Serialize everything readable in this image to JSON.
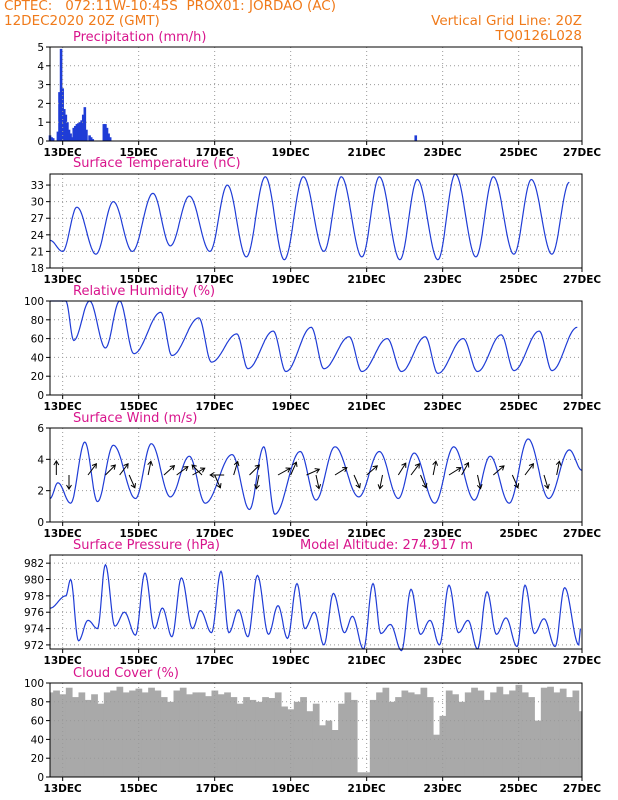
{
  "header": {
    "source": "CPTEC:",
    "location": "072:11W-10:45S",
    "station": "PROX01: JORDAO (AC)",
    "datetime": "12DEC2020 20Z (GMT)",
    "grid_note": "Vertical Grid Line: 20Z",
    "code": "TQ0126L028"
  },
  "colors": {
    "header": "#f07a1a",
    "title": "#d8148c",
    "series": "#1f3cd6",
    "cloud": "#a9a9a9",
    "grid": "#999999"
  },
  "x_axis": {
    "start_hour": 20,
    "end_hour": 356,
    "tick_labels": [
      "13DEC",
      "15DEC",
      "17DEC",
      "19DEC",
      "21DEC",
      "23DEC",
      "25DEC",
      "27DEC"
    ],
    "tick_hours": [
      28,
      76,
      124,
      172,
      220,
      268,
      316,
      364
    ]
  },
  "chart_data": [
    {
      "id": "precip",
      "type": "bar",
      "title": "Precipitation (mm/h)",
      "xlabel": "",
      "ylabel": "",
      "ylim": [
        0,
        5
      ],
      "yticks": [
        0,
        1,
        2,
        3,
        4,
        5
      ],
      "color": "#1f3cd6",
      "x": [
        20,
        21,
        22,
        25,
        26,
        27,
        28,
        29,
        30,
        31,
        32,
        33,
        34,
        35,
        36,
        37,
        38,
        39,
        40,
        41,
        42,
        43,
        45,
        46,
        47,
        54,
        55,
        56,
        57,
        58,
        251
      ],
      "values": [
        0.3,
        0.2,
        0.15,
        0.5,
        2.6,
        4.9,
        2.8,
        1.7,
        1.4,
        1.0,
        0.6,
        0.4,
        0.2,
        0.7,
        0.8,
        0.9,
        0.95,
        1.0,
        1.1,
        1.4,
        1.8,
        0.6,
        0.3,
        0.2,
        0.1,
        0.9,
        0.9,
        0.7,
        0.4,
        0.2,
        0.3
      ]
    },
    {
      "id": "temp",
      "type": "line",
      "title": "Surface Temperature (nC)",
      "xlabel": "",
      "ylabel": "",
      "ylim": [
        18,
        35
      ],
      "yticks": [
        18,
        21,
        24,
        27,
        30,
        33
      ],
      "color": "#1f3cd6",
      "max_h": [
        37,
        60,
        85,
        108,
        132,
        156,
        180,
        204,
        228,
        252,
        276,
        300,
        324,
        348
      ],
      "max_v": [
        29,
        30,
        31.5,
        31,
        33,
        34.5,
        34.5,
        34.5,
        34.5,
        34,
        35,
        34.5,
        34,
        33.5
      ],
      "min_h": [
        20,
        28,
        49,
        72,
        96,
        121,
        144,
        168,
        193,
        217,
        241,
        265,
        289,
        313,
        337
      ],
      "min_v": [
        23,
        21,
        20.5,
        21,
        22,
        21,
        20,
        19.5,
        21,
        20,
        19.5,
        19.5,
        20,
        20.5,
        20.5
      ]
    },
    {
      "id": "rh",
      "type": "line",
      "title": "Relative Humidity (%)",
      "xlabel": "",
      "ylabel": "",
      "ylim": [
        0,
        100
      ],
      "yticks": [
        0,
        20,
        40,
        60,
        80,
        100
      ],
      "color": "#1f3cd6",
      "max_h": [
        20,
        30,
        45,
        64,
        90,
        114,
        138,
        161,
        185,
        209,
        233,
        257,
        281,
        305,
        329,
        353
      ],
      "max_v": [
        100,
        100,
        100,
        100,
        88,
        82,
        65,
        68,
        72,
        62,
        60,
        62,
        60,
        64,
        68,
        72
      ],
      "min_h": [
        35,
        55,
        73,
        97,
        122,
        145,
        169,
        193,
        217,
        242,
        265,
        290,
        313,
        337
      ],
      "min_v": [
        58,
        50,
        44,
        42,
        35,
        28,
        25,
        28,
        25,
        25,
        23,
        25,
        26,
        26
      ]
    },
    {
      "id": "wind",
      "type": "line",
      "title": "Surface Wind (m/s)",
      "xlabel": "",
      "ylabel": "",
      "ylim": [
        0,
        6
      ],
      "yticks": [
        0,
        2,
        4,
        6
      ],
      "color": "#1f3cd6",
      "max_h": [
        25,
        42,
        60,
        84,
        108,
        135,
        155,
        178,
        200,
        228,
        250,
        275,
        298,
        322,
        348,
        356
      ],
      "max_v": [
        2.5,
        5.1,
        4.9,
        5.0,
        4.2,
        4.3,
        4.8,
        4.5,
        4.8,
        4.5,
        4.4,
        4.8,
        4.2,
        5.3,
        4.6,
        3.3
      ],
      "min_h": [
        20,
        33,
        50,
        74,
        96,
        118,
        146,
        162,
        188,
        215,
        240,
        263,
        288,
        310,
        335
      ],
      "min_v": [
        1.5,
        1.2,
        1.3,
        1.5,
        1.6,
        1.2,
        0.8,
        0.5,
        1.4,
        1.6,
        1.5,
        1.2,
        1.4,
        1.2,
        1.5
      ],
      "arrows": [
        {
          "h": 24,
          "dir": [
            0,
            1
          ]
        },
        {
          "h": 32,
          "dir": [
            0,
            -1
          ]
        },
        {
          "h": 44,
          "dir": [
            0.6,
            0.8
          ]
        },
        {
          "h": 55,
          "dir": [
            0.7,
            0.7
          ]
        },
        {
          "h": 64,
          "dir": [
            0.6,
            0.8
          ]
        },
        {
          "h": 70,
          "dir": [
            0.4,
            -0.9
          ]
        },
        {
          "h": 82,
          "dir": [
            0.2,
            1
          ]
        },
        {
          "h": 92,
          "dir": [
            1,
            0.9
          ]
        },
        {
          "h": 100,
          "dir": [
            0.8,
            0.6
          ]
        },
        {
          "h": 110,
          "dir": [
            0.9,
            0.5
          ]
        },
        {
          "h": 116,
          "dir": [
            -0.7,
            0.7
          ]
        },
        {
          "h": 124,
          "dir": [
            0.4,
            -0.9
          ]
        },
        {
          "h": 130,
          "dir": [
            -0.8,
            0
          ]
        },
        {
          "h": 136,
          "dir": [
            0.3,
            1
          ]
        },
        {
          "h": 146,
          "dir": [
            1,
            1
          ]
        },
        {
          "h": 152,
          "dir": [
            -0.2,
            -1
          ]
        },
        {
          "h": 164,
          "dir": [
            0.9,
            0.5
          ]
        },
        {
          "h": 172,
          "dir": [
            0.4,
            0.9
          ]
        },
        {
          "h": 182,
          "dir": [
            0.9,
            0.4
          ]
        },
        {
          "h": 188,
          "dir": [
            0.2,
            -0.9
          ]
        },
        {
          "h": 200,
          "dir": [
            0.8,
            0.5
          ]
        },
        {
          "h": 212,
          "dir": [
            0.4,
            -0.9
          ]
        },
        {
          "h": 220,
          "dir": [
            0.7,
            0.6
          ]
        },
        {
          "h": 230,
          "dir": [
            -0.2,
            -1
          ]
        },
        {
          "h": 240,
          "dir": [
            0.5,
            0.8
          ]
        },
        {
          "h": 248,
          "dir": [
            0.6,
            0.8
          ]
        },
        {
          "h": 254,
          "dir": [
            0.4,
            -0.9
          ]
        },
        {
          "h": 262,
          "dir": [
            0.2,
            1
          ]
        },
        {
          "h": 272,
          "dir": [
            0.8,
            0.5
          ]
        },
        {
          "h": 280,
          "dir": [
            0.5,
            0.9
          ]
        },
        {
          "h": 290,
          "dir": [
            0.2,
            -0.9
          ]
        },
        {
          "h": 300,
          "dir": [
            0.7,
            0.6
          ]
        },
        {
          "h": 312,
          "dir": [
            0.4,
            -0.9
          ]
        },
        {
          "h": 320,
          "dir": [
            0.6,
            0.8
          ]
        },
        {
          "h": 332,
          "dir": [
            0.3,
            -1
          ]
        },
        {
          "h": 340,
          "dir": [
            0.2,
            1
          ]
        }
      ]
    },
    {
      "id": "pres",
      "type": "line",
      "title": "Surface Pressure (hPa)",
      "extra_label": "Model Altitude: 274.917 m",
      "xlabel": "",
      "ylabel": "",
      "ylim": [
        971.5,
        983
      ],
      "yticks": [
        972,
        974,
        976,
        978,
        980,
        982
      ],
      "color": "#1f3cd6",
      "max_h": [
        20,
        33,
        44,
        55,
        67,
        80,
        91,
        103,
        115,
        128,
        139,
        151,
        164,
        176,
        187,
        199,
        211,
        224,
        235,
        248,
        260,
        272,
        284,
        296,
        308,
        320,
        332,
        345,
        355
      ],
      "max_v": [
        976.5,
        980,
        975,
        981.8,
        976,
        980.8,
        976.5,
        980.2,
        976.2,
        981,
        976.3,
        980.5,
        976.8,
        979.5,
        976,
        978.3,
        975.5,
        979.5,
        974.5,
        978.8,
        975,
        979.3,
        975,
        978.5,
        975.3,
        979.3,
        975.2,
        979,
        974
      ],
      "min_h": [
        30,
        38,
        50,
        61,
        74,
        86,
        97,
        110,
        122,
        133,
        145,
        158,
        170,
        181,
        193,
        206,
        218,
        229,
        242,
        254,
        266,
        278,
        290,
        302,
        315,
        326,
        339,
        354
      ],
      "min_v": [
        978,
        972.5,
        974,
        974.3,
        973.2,
        974,
        973,
        974,
        973.5,
        973.5,
        973,
        973.3,
        972.8,
        974,
        972,
        973.5,
        971.5,
        973.4,
        971.3,
        973.3,
        972,
        973.5,
        971.5,
        973.3,
        971.8,
        973.4,
        971.8,
        972
      ]
    },
    {
      "id": "cloud",
      "type": "area",
      "title": "Cloud Cover (%)",
      "xlabel": "",
      "ylabel": "",
      "ylim": [
        0,
        100
      ],
      "yticks": [
        0,
        20,
        40,
        60,
        80,
        100
      ],
      "color": "#a9a9a9",
      "x": [
        20,
        24,
        28,
        32,
        36,
        40,
        44,
        48,
        52,
        56,
        60,
        64,
        68,
        72,
        76,
        80,
        84,
        88,
        92,
        96,
        100,
        104,
        108,
        112,
        116,
        120,
        124,
        128,
        132,
        136,
        140,
        144,
        148,
        152,
        156,
        160,
        164,
        168,
        172,
        176,
        180,
        184,
        188,
        192,
        196,
        200,
        204,
        208,
        212,
        216,
        220,
        224,
        228,
        232,
        236,
        240,
        244,
        248,
        252,
        256,
        260,
        264,
        268,
        272,
        276,
        280,
        284,
        288,
        292,
        296,
        300,
        304,
        308,
        312,
        316,
        320,
        324,
        328,
        332,
        336,
        340,
        344,
        348,
        352,
        356
      ],
      "values": [
        90,
        92,
        88,
        95,
        85,
        90,
        82,
        88,
        78,
        90,
        92,
        96,
        90,
        92,
        94,
        90,
        95,
        92,
        85,
        80,
        92,
        95,
        88,
        90,
        90,
        86,
        92,
        88,
        90,
        85,
        78,
        85,
        82,
        80,
        85,
        84,
        90,
        75,
        72,
        80,
        85,
        70,
        78,
        55,
        60,
        50,
        78,
        90,
        82,
        5,
        5,
        82,
        90,
        95,
        80,
        85,
        92,
        90,
        88,
        95,
        85,
        45,
        65,
        92,
        88,
        80,
        90,
        95,
        92,
        82,
        90,
        96,
        88,
        92,
        98,
        90,
        85,
        60,
        95,
        96,
        90,
        94,
        85,
        92,
        70
      ]
    }
  ]
}
